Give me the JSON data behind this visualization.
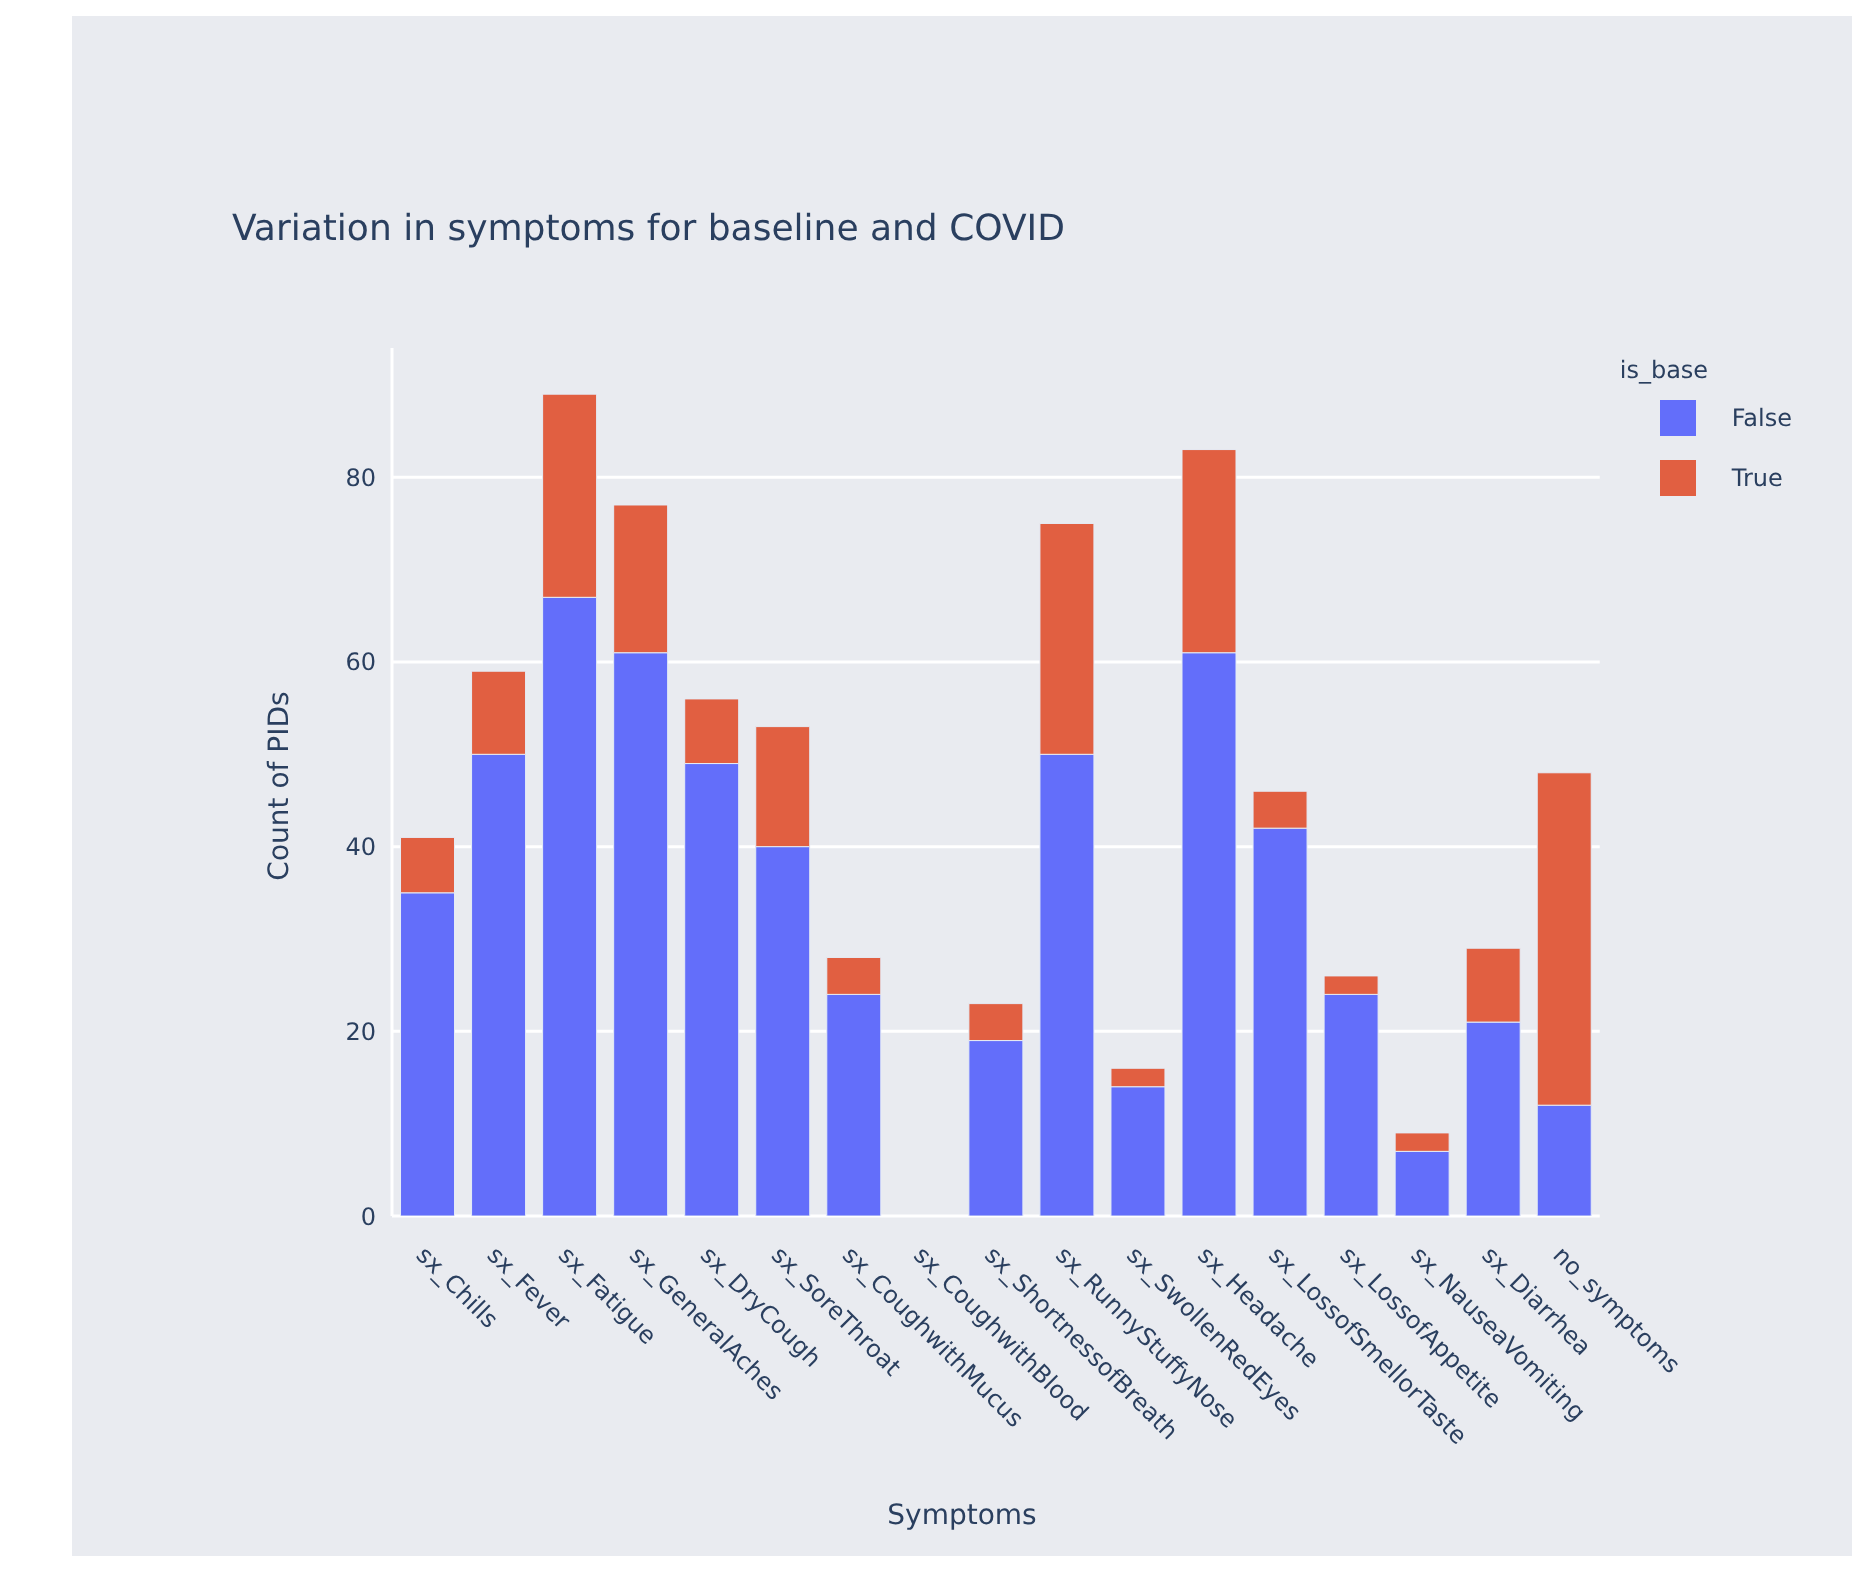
{
  "chart_data": {
    "type": "bar",
    "title": "Variation in symptoms for baseline and COVID",
    "xlabel": "Symptoms",
    "ylabel": "Count of PIDs",
    "legend_title": "is_base",
    "categories": [
      "sx_Chills",
      "sx_Fever",
      "sx_Fatigue",
      "sx_GeneralAches",
      "sx_DryCough",
      "sx_SoreThroat",
      "sx_CoughwithMucus",
      "sx_CoughwithBlood",
      "sx_ShortnessofBreath",
      "sx_RunnyStuffyNose",
      "sx_SwollenRedEyes",
      "sx_Headache",
      "sx_LossofSmellorTaste",
      "sx_LossofAppetite",
      "sx_NauseaVomiting",
      "sx_Diarrhea",
      "no_symptoms"
    ],
    "series": [
      {
        "name": "False",
        "color": "#636efa",
        "values": [
          35,
          50,
          67,
          61,
          49,
          40,
          24,
          0,
          19,
          50,
          14,
          61,
          42,
          24,
          7,
          21,
          12
        ]
      },
      {
        "name": "True",
        "color": "#e15f41",
        "values": [
          6,
          9,
          22,
          16,
          7,
          13,
          4,
          0,
          4,
          25,
          2,
          22,
          4,
          2,
          2,
          8,
          36
        ]
      }
    ],
    "stacked": true,
    "ylim": [
      0,
      94
    ],
    "yticks": [
      0,
      20,
      40,
      60,
      80
    ],
    "grid": "y",
    "legend": "top right"
  }
}
